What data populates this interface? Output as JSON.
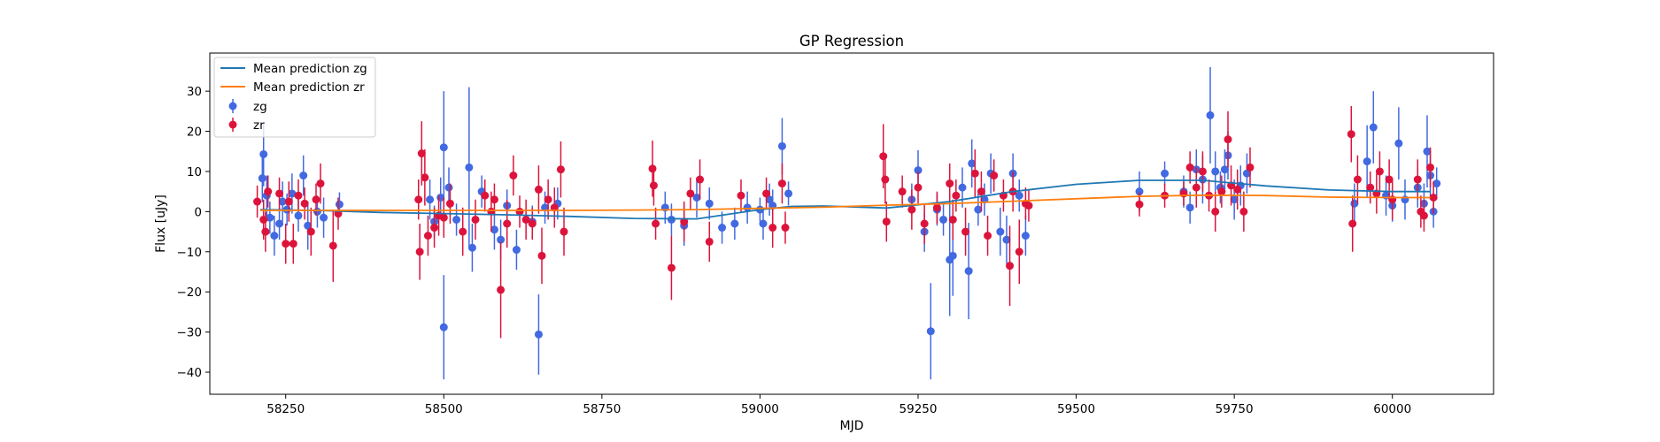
{
  "chart_data": {
    "type": "scatter",
    "title": "GP Regression",
    "xlabel": "MJD",
    "ylabel": "Flux [uJy]",
    "xlim": [
      58130,
      60160
    ],
    "ylim": [
      -45.5,
      39.5
    ],
    "xticks": [
      58250,
      58500,
      58750,
      59000,
      59250,
      59500,
      59750,
      60000
    ],
    "yticks": [
      -40,
      -30,
      -20,
      -10,
      0,
      10,
      20,
      30
    ],
    "xtick_labels": [
      "58250",
      "58500",
      "58750",
      "59000",
      "59250",
      "59500",
      "59750",
      "60000"
    ],
    "ytick_labels": [
      "−40",
      "−30",
      "−20",
      "−10",
      "0",
      "10",
      "20",
      "30"
    ],
    "grid": false,
    "legend_position": "top-left",
    "series": [
      {
        "name": "Mean prediction zg",
        "kind": "line",
        "color": "#1f77b4",
        "x": [
          58210,
          58300,
          58400,
          58500,
          58600,
          58700,
          58800,
          58900,
          59000,
          59050,
          59100,
          59200,
          59300,
          59400,
          59500,
          59600,
          59700,
          59800,
          59900,
          60000,
          60060
        ],
        "y": [
          0.5,
          0.3,
          -0.2,
          -0.5,
          -0.8,
          -1.2,
          -1.7,
          -1.8,
          0.5,
          1.3,
          1.4,
          0.9,
          2.5,
          5.0,
          6.8,
          7.8,
          7.8,
          6.4,
          5.4,
          5.0,
          5.0
        ]
      },
      {
        "name": "Mean prediction zr",
        "kind": "line",
        "color": "#ff7f0e",
        "x": [
          58210,
          58300,
          58400,
          58500,
          58600,
          58700,
          58800,
          58900,
          59000,
          59100,
          59200,
          59300,
          59400,
          59500,
          59600,
          59700,
          59800,
          59900,
          60000,
          60060
        ],
        "y": [
          0.3,
          0.3,
          0.3,
          0.3,
          0.3,
          0.3,
          0.4,
          0.5,
          0.8,
          1.1,
          1.6,
          2.0,
          2.6,
          3.2,
          3.8,
          4.1,
          4.0,
          3.6,
          3.5,
          3.5
        ]
      },
      {
        "name": "zg",
        "kind": "errorbar",
        "color": "#4169e1",
        "points": [
          [
            58215,
            14.3,
            8
          ],
          [
            58213,
            8.3,
            6
          ],
          [
            58220,
            4.0,
            5
          ],
          [
            58225,
            -1.5,
            4
          ],
          [
            58232,
            -6.0,
            5
          ],
          [
            58240,
            -3.0,
            4
          ],
          [
            58245,
            2.5,
            5
          ],
          [
            58252,
            0.5,
            4
          ],
          [
            58260,
            4.5,
            5
          ],
          [
            58270,
            -1.0,
            4
          ],
          [
            58278,
            9.0,
            5
          ],
          [
            58285,
            -3.5,
            6
          ],
          [
            58300,
            0.0,
            4
          ],
          [
            58310,
            -1.5,
            5
          ],
          [
            58335,
            1.8,
            3
          ],
          [
            58478,
            3.0,
            5
          ],
          [
            58485,
            -2.5,
            4
          ],
          [
            58495,
            3.5,
            5
          ],
          [
            58500,
            16.0,
            14
          ],
          [
            58500,
            -28.8,
            13
          ],
          [
            58508,
            6.0,
            5
          ],
          [
            58520,
            -2.0,
            4
          ],
          [
            58540,
            11.0,
            20
          ],
          [
            58545,
            -9.0,
            6
          ],
          [
            58560,
            5.0,
            4
          ],
          [
            58580,
            -4.5,
            5
          ],
          [
            58590,
            -7.0,
            5
          ],
          [
            58600,
            1.5,
            4
          ],
          [
            58615,
            -9.5,
            5
          ],
          [
            58640,
            -2.5,
            4
          ],
          [
            58650,
            -30.6,
            10
          ],
          [
            58660,
            1.0,
            4
          ],
          [
            58680,
            2.0,
            4
          ],
          [
            58850,
            1.0,
            4
          ],
          [
            58860,
            -2.0,
            4
          ],
          [
            58880,
            -3.5,
            5
          ],
          [
            58900,
            3.5,
            5
          ],
          [
            58920,
            2.0,
            4
          ],
          [
            58940,
            -4.0,
            4
          ],
          [
            58960,
            -3.0,
            4
          ],
          [
            58980,
            1.0,
            4
          ],
          [
            59000,
            0.5,
            3
          ],
          [
            59005,
            -3.0,
            4
          ],
          [
            59015,
            3.0,
            4
          ],
          [
            59020,
            1.5,
            4
          ],
          [
            59035,
            16.3,
            7
          ],
          [
            59045,
            4.5,
            3
          ],
          [
            59240,
            3.0,
            4
          ],
          [
            59250,
            10.3,
            5
          ],
          [
            59260,
            -5.0,
            5
          ],
          [
            59270,
            -29.8,
            12
          ],
          [
            59280,
            0.5,
            4
          ],
          [
            59290,
            -2.0,
            4
          ],
          [
            59300,
            -12.0,
            14
          ],
          [
            59305,
            -11.0,
            10
          ],
          [
            59320,
            6.0,
            5
          ],
          [
            59330,
            -14.8,
            12
          ],
          [
            59335,
            12.0,
            6
          ],
          [
            59345,
            0.5,
            4
          ],
          [
            59355,
            3.0,
            4
          ],
          [
            59365,
            9.5,
            5
          ],
          [
            59380,
            -5.0,
            6
          ],
          [
            59390,
            -7.0,
            6
          ],
          [
            59400,
            9.5,
            5
          ],
          [
            59410,
            4.0,
            4
          ],
          [
            59420,
            -6.0,
            5
          ],
          [
            59600,
            5.0,
            5
          ],
          [
            59640,
            9.5,
            3
          ],
          [
            59670,
            5.0,
            4
          ],
          [
            59680,
            1.0,
            4
          ],
          [
            59690,
            10.5,
            5
          ],
          [
            59700,
            8.0,
            6
          ],
          [
            59712,
            24.0,
            12
          ],
          [
            59720,
            10.0,
            5
          ],
          [
            59728,
            6.0,
            4
          ],
          [
            59735,
            10.5,
            5
          ],
          [
            59740,
            14.0,
            6
          ],
          [
            59750,
            3.0,
            5
          ],
          [
            59760,
            6.5,
            5
          ],
          [
            59770,
            9.5,
            5
          ],
          [
            59940,
            2.0,
            5
          ],
          [
            59960,
            12.5,
            9
          ],
          [
            59970,
            21.0,
            9
          ],
          [
            59990,
            4.0,
            5
          ],
          [
            60000,
            1.5,
            4
          ],
          [
            60010,
            17.0,
            9
          ],
          [
            60020,
            3.0,
            5
          ],
          [
            60040,
            6.0,
            5
          ],
          [
            60050,
            2.0,
            5
          ],
          [
            60055,
            15.0,
            9
          ],
          [
            60060,
            9.0,
            6
          ],
          [
            60065,
            0.0,
            4
          ],
          [
            60070,
            7.0,
            4
          ]
        ]
      },
      {
        "name": "zr",
        "kind": "errorbar",
        "color": "#dc143c",
        "points": [
          [
            58205,
            2.5,
            4
          ],
          [
            58215,
            -2.0,
            5
          ],
          [
            58218,
            -5.0,
            5
          ],
          [
            58222,
            5.0,
            4
          ],
          [
            58240,
            4.5,
            4
          ],
          [
            58250,
            -8.0,
            5
          ],
          [
            58255,
            2.5,
            5
          ],
          [
            58262,
            -8.0,
            5
          ],
          [
            58270,
            4.0,
            4
          ],
          [
            58280,
            2.0,
            4
          ],
          [
            58290,
            -5.0,
            6
          ],
          [
            58298,
            3.0,
            4
          ],
          [
            58305,
            7.0,
            5
          ],
          [
            58325,
            -8.5,
            9
          ],
          [
            58333,
            -0.5,
            4
          ],
          [
            58460,
            3.0,
            5
          ],
          [
            58462,
            -10.0,
            7
          ],
          [
            58465,
            14.5,
            8
          ],
          [
            58470,
            8.5,
            7
          ],
          [
            58475,
            -6.0,
            5
          ],
          [
            58485,
            -4.0,
            5
          ],
          [
            58492,
            -1.0,
            5
          ],
          [
            58500,
            -1.5,
            5
          ],
          [
            58510,
            2.0,
            5
          ],
          [
            58530,
            -5.0,
            6
          ],
          [
            58550,
            -2.0,
            5
          ],
          [
            58565,
            4.0,
            4
          ],
          [
            58575,
            0.0,
            5
          ],
          [
            58580,
            3.0,
            4
          ],
          [
            58590,
            -19.5,
            12
          ],
          [
            58600,
            -3.0,
            6
          ],
          [
            58610,
            9.0,
            5
          ],
          [
            58620,
            0.0,
            4
          ],
          [
            58630,
            -2.0,
            5
          ],
          [
            58640,
            -3.0,
            4
          ],
          [
            58650,
            5.5,
            6
          ],
          [
            58655,
            -11.0,
            7
          ],
          [
            58665,
            3.0,
            5
          ],
          [
            58675,
            1.0,
            5
          ],
          [
            58685,
            10.5,
            7
          ],
          [
            58690,
            -5.0,
            6
          ],
          [
            58830,
            10.7,
            7
          ],
          [
            58832,
            6.5,
            5
          ],
          [
            58835,
            -3.0,
            4
          ],
          [
            58860,
            -14.0,
            8
          ],
          [
            58880,
            -2.5,
            5
          ],
          [
            58890,
            4.5,
            4
          ],
          [
            58905,
            8.0,
            5
          ],
          [
            58920,
            -7.5,
            5
          ],
          [
            58970,
            4.0,
            4
          ],
          [
            59010,
            4.5,
            4
          ],
          [
            59020,
            -4.0,
            5
          ],
          [
            59035,
            7.0,
            5
          ],
          [
            59040,
            -4.0,
            4
          ],
          [
            59195,
            13.8,
            8
          ],
          [
            59198,
            8.0,
            6
          ],
          [
            59200,
            -2.5,
            5
          ],
          [
            59225,
            5.0,
            4
          ],
          [
            59240,
            0.5,
            5
          ],
          [
            59250,
            6.0,
            4
          ],
          [
            59260,
            -3.0,
            5
          ],
          [
            59280,
            1.0,
            4
          ],
          [
            59300,
            7.0,
            5
          ],
          [
            59305,
            -2.0,
            5
          ],
          [
            59310,
            4.0,
            4
          ],
          [
            59325,
            -5.0,
            6
          ],
          [
            59340,
            9.5,
            6
          ],
          [
            59350,
            5.0,
            5
          ],
          [
            59360,
            -6.0,
            5
          ],
          [
            59370,
            9.0,
            4
          ],
          [
            59385,
            4.0,
            4
          ],
          [
            59395,
            -13.5,
            10
          ],
          [
            59400,
            5.0,
            5
          ],
          [
            59410,
            -10.0,
            8
          ],
          [
            59420,
            2.0,
            4
          ],
          [
            59425,
            1.5,
            4
          ],
          [
            59600,
            1.8,
            3
          ],
          [
            59640,
            4.0,
            3
          ],
          [
            59670,
            4.5,
            3
          ],
          [
            59680,
            11.0,
            4
          ],
          [
            59690,
            6.0,
            5
          ],
          [
            59700,
            10.0,
            5
          ],
          [
            59710,
            4.0,
            4
          ],
          [
            59720,
            0.0,
            5
          ],
          [
            59730,
            5.0,
            4
          ],
          [
            59740,
            18.0,
            7
          ],
          [
            59745,
            6.5,
            5
          ],
          [
            59755,
            5.5,
            5
          ],
          [
            59765,
            0.0,
            5
          ],
          [
            59775,
            11.0,
            5
          ],
          [
            59935,
            19.3,
            7
          ],
          [
            59937,
            -3.0,
            7
          ],
          [
            59945,
            8.0,
            6
          ],
          [
            59965,
            6.0,
            4
          ],
          [
            59975,
            4.5,
            5
          ],
          [
            59980,
            10.0,
            5
          ],
          [
            59995,
            8.0,
            5
          ],
          [
            60000,
            3.0,
            5
          ],
          [
            60040,
            8.0,
            5
          ],
          [
            60045,
            0.0,
            4
          ],
          [
            60050,
            -1.0,
            4
          ],
          [
            60060,
            11.0,
            5
          ],
          [
            60065,
            3.5,
            4
          ]
        ]
      }
    ]
  }
}
